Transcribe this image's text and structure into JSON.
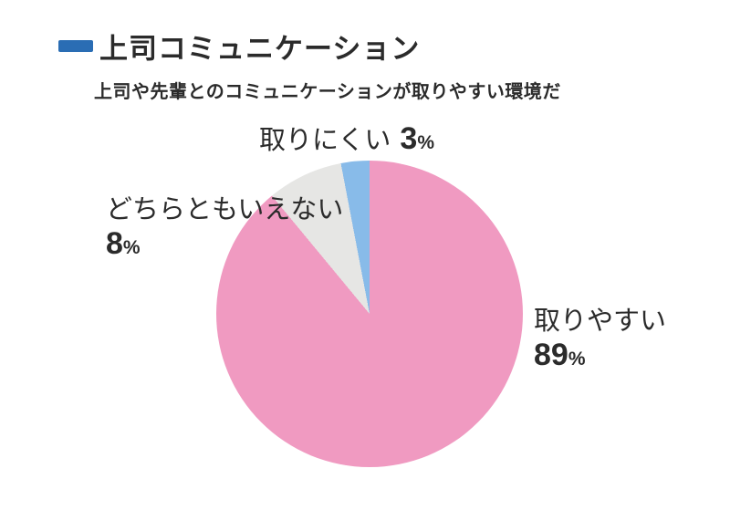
{
  "header": {
    "title": "上司コミュニケーション",
    "subtitle": "上司や先輩とのコミュニケーションが取りやすい環境だ",
    "accent_color": "#2a6db4"
  },
  "chart_data": {
    "type": "pie",
    "title": "上司コミュニケーション",
    "subtitle": "上司や先輩とのコミュニケーションが取りやすい環境だ",
    "start_angle_deg": 0,
    "direction": "clockwise",
    "legend_position": "labels-around-pie",
    "slices": [
      {
        "label": "取りやすい",
        "value": 89,
        "unit": "%",
        "color": "#f09ac1"
      },
      {
        "label": "どちらともいえない",
        "value": 8,
        "unit": "%",
        "color": "#e6e6e4"
      },
      {
        "label": "取りにくい",
        "value": 3,
        "unit": "%",
        "color": "#88bbe9"
      }
    ]
  },
  "labels": {
    "top": {
      "text": "取りにくい",
      "value": "3",
      "percent": "%"
    },
    "left": {
      "text": "どちらともいえない",
      "value": "8",
      "percent": "%"
    },
    "right": {
      "text": "取りやすい",
      "value": "89",
      "percent": "%"
    }
  }
}
